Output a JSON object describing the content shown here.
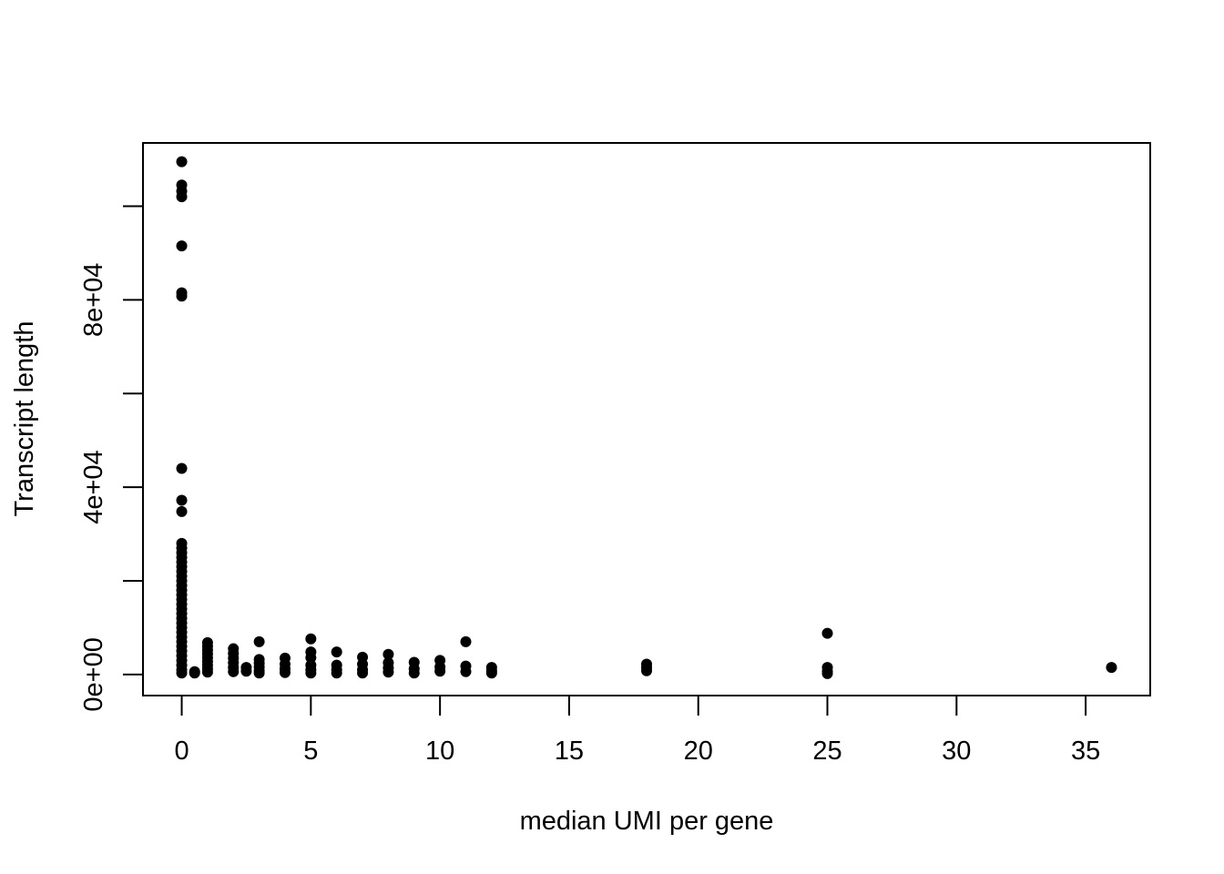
{
  "chart_data": {
    "type": "scatter",
    "title": "",
    "xlabel": "median UMI per gene",
    "ylabel": "Transcript length",
    "xlim": [
      -1.5,
      37.5
    ],
    "ylim": [
      -4500,
      113500
    ],
    "x_ticks": [
      0,
      5,
      10,
      15,
      20,
      25,
      30,
      35
    ],
    "y_ticks": [
      0,
      20000,
      40000,
      60000,
      80000,
      100000
    ],
    "y_tick_labels": {
      "0": "0e+00",
      "40000": "4e+04",
      "80000": "8e+04"
    },
    "grid": false,
    "marker_color": "#000000",
    "series": [
      {
        "points": [
          [
            0,
            109500
          ],
          [
            0,
            104500
          ],
          [
            0,
            103200
          ],
          [
            0,
            102000
          ],
          [
            0,
            91500
          ],
          [
            0,
            81500
          ],
          [
            0,
            80800
          ],
          [
            0,
            44000
          ],
          [
            0,
            37200
          ],
          [
            0,
            34800
          ],
          [
            0,
            28000
          ],
          [
            0,
            27000
          ],
          [
            0,
            26000
          ],
          [
            0,
            25000
          ],
          [
            0,
            24000
          ],
          [
            0,
            23000
          ],
          [
            0,
            22000
          ],
          [
            0,
            21000
          ],
          [
            0,
            20000
          ],
          [
            0,
            19000
          ],
          [
            0,
            18000
          ],
          [
            0,
            17000
          ],
          [
            0,
            16000
          ],
          [
            0,
            15000
          ],
          [
            0,
            14000
          ],
          [
            0,
            13000
          ],
          [
            0,
            12000
          ],
          [
            0,
            11000
          ],
          [
            0,
            10000
          ],
          [
            0,
            9000
          ],
          [
            0,
            8000
          ],
          [
            0,
            7000
          ],
          [
            0,
            6000
          ],
          [
            0,
            5000
          ],
          [
            0,
            4000
          ],
          [
            0,
            3000
          ],
          [
            0,
            2000
          ],
          [
            0,
            1000
          ],
          [
            0,
            300
          ],
          [
            0.5,
            600
          ],
          [
            0.5,
            300
          ],
          [
            1,
            6800
          ],
          [
            1,
            6000
          ],
          [
            1,
            5200
          ],
          [
            1,
            4400
          ],
          [
            1,
            3600
          ],
          [
            1,
            2800
          ],
          [
            1,
            2000
          ],
          [
            1,
            1200
          ],
          [
            1,
            500
          ],
          [
            2,
            5500
          ],
          [
            2,
            4500
          ],
          [
            2,
            3500
          ],
          [
            2,
            2500
          ],
          [
            2,
            1500
          ],
          [
            2,
            600
          ],
          [
            2.5,
            1500
          ],
          [
            2.5,
            700
          ],
          [
            3,
            7000
          ],
          [
            3,
            3200
          ],
          [
            3,
            2400
          ],
          [
            3,
            1600
          ],
          [
            3,
            800
          ],
          [
            3,
            300
          ],
          [
            4,
            3500
          ],
          [
            4,
            2200
          ],
          [
            4,
            1200
          ],
          [
            4,
            400
          ],
          [
            5,
            7600
          ],
          [
            5,
            4800
          ],
          [
            5,
            3600
          ],
          [
            5,
            2000
          ],
          [
            5,
            1000
          ],
          [
            5,
            300
          ],
          [
            6,
            4800
          ],
          [
            6,
            2000
          ],
          [
            6,
            1000
          ],
          [
            6,
            300
          ],
          [
            7,
            3700
          ],
          [
            7,
            2200
          ],
          [
            7,
            1000
          ],
          [
            7,
            300
          ],
          [
            8,
            4300
          ],
          [
            8,
            2500
          ],
          [
            8,
            1400
          ],
          [
            8,
            500
          ],
          [
            9,
            2600
          ],
          [
            9,
            1200
          ],
          [
            9,
            300
          ],
          [
            10,
            3000
          ],
          [
            10,
            1600
          ],
          [
            10,
            700
          ],
          [
            11,
            7000
          ],
          [
            11,
            1800
          ],
          [
            11,
            600
          ],
          [
            12,
            1500
          ],
          [
            12,
            800
          ],
          [
            12,
            300
          ],
          [
            18,
            2200
          ],
          [
            18,
            1500
          ],
          [
            18,
            800
          ],
          [
            25,
            8800
          ],
          [
            25,
            1500
          ],
          [
            25,
            700
          ],
          [
            25,
            200
          ],
          [
            36,
            1500
          ]
        ]
      }
    ]
  }
}
